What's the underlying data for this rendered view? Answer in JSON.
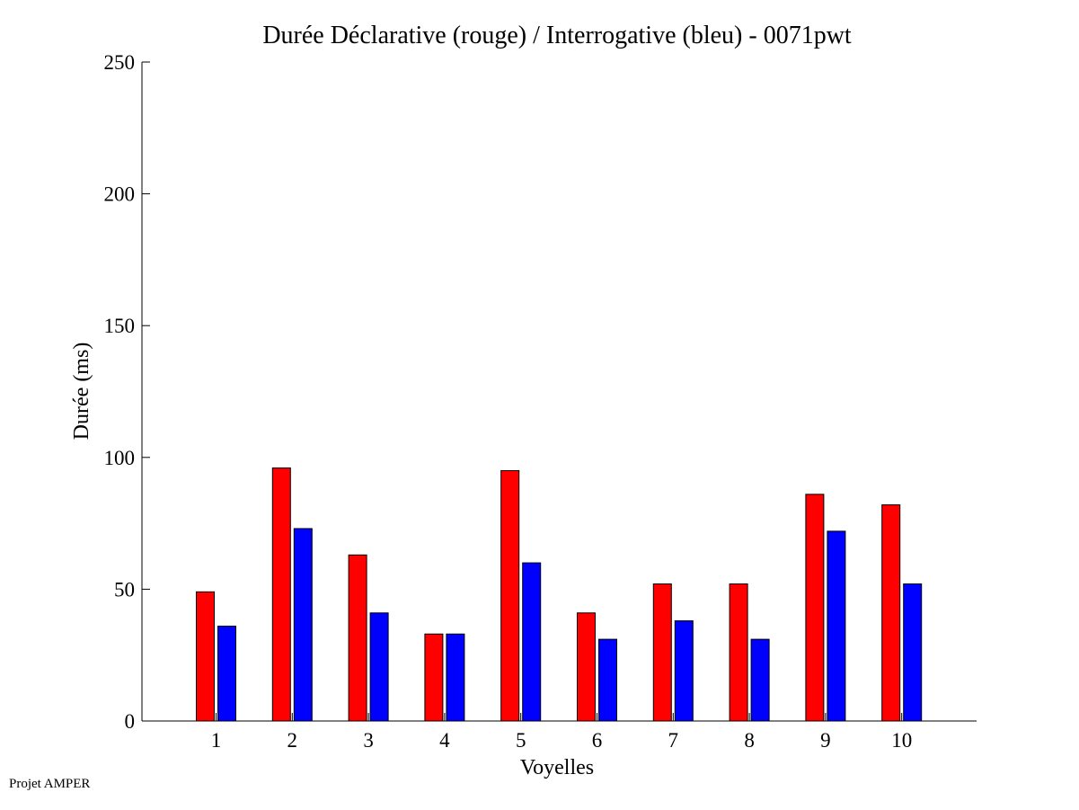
{
  "footer": {
    "label": "Projet AMPER"
  },
  "chart_data": {
    "type": "bar",
    "title": "Durée Déclarative (rouge) / Interrogative (bleu) - 0071pwt",
    "xlabel": "Voyelles",
    "ylabel": "Durée (ms)",
    "ylim": [
      0,
      250
    ],
    "yticks": [
      0,
      50,
      100,
      150,
      200,
      250
    ],
    "categories": [
      "1",
      "2",
      "3",
      "4",
      "5",
      "6",
      "7",
      "8",
      "9",
      "10"
    ],
    "grid": false,
    "series": [
      {
        "color": "#ff0000",
        "values": [
          49,
          96,
          63,
          33,
          95,
          41,
          52,
          52,
          86,
          82
        ]
      },
      {
        "color": "#0000ff",
        "values": [
          36,
          73,
          41,
          33,
          60,
          31,
          38,
          31,
          72,
          52
        ]
      }
    ]
  }
}
